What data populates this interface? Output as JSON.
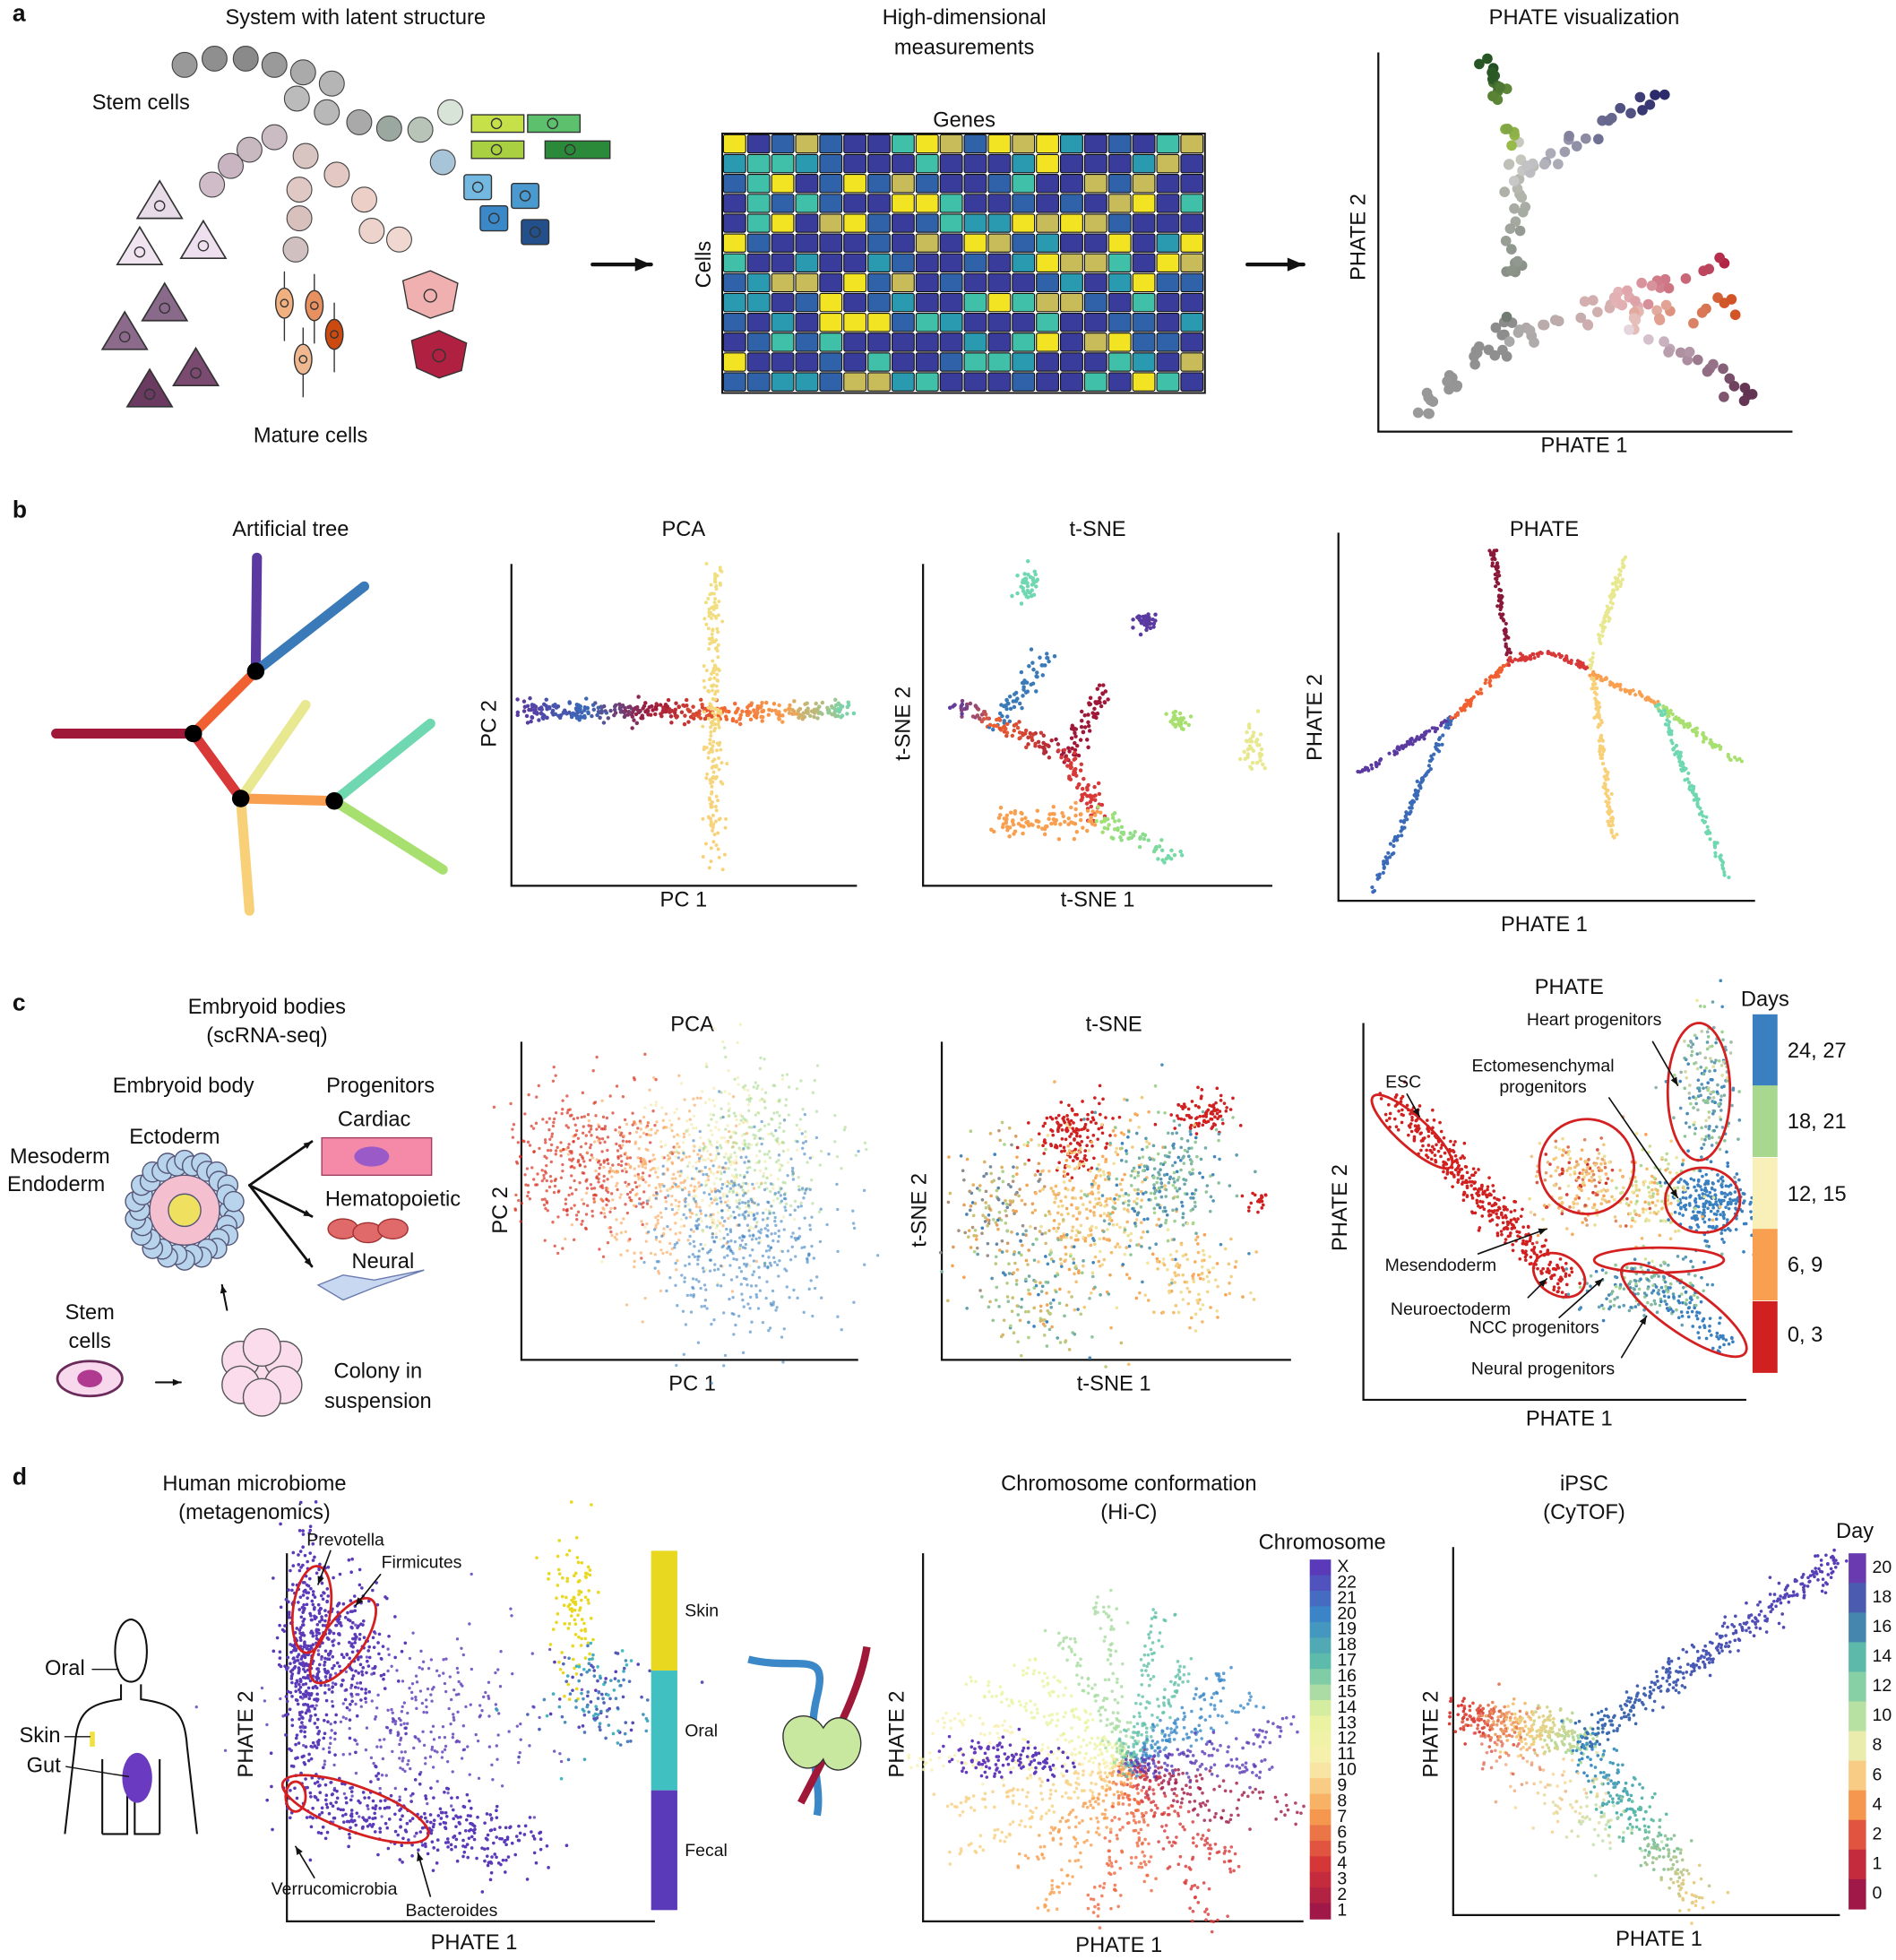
{
  "panel_a": {
    "label": "a",
    "system_title": "System with latent structure",
    "stem_cells": "Stem cells",
    "mature_cells": "Mature cells",
    "measurements_title": [
      "High-dimensional",
      "measurements"
    ],
    "genes": "Genes",
    "cells": "Cells",
    "phate_title": "PHATE visualization",
    "x_label": "PHATE 1",
    "y_label": "PHATE 2"
  },
  "panel_b": {
    "label": "b",
    "tree_title": "Artificial tree",
    "pca": {
      "title": "PCA",
      "x_label": "PC 1",
      "y_label": "PC 2"
    },
    "tsne": {
      "title": "t-SNE",
      "x_label": "t-SNE 1",
      "y_label": "t-SNE 2"
    },
    "phate": {
      "title": "PHATE",
      "x_label": "PHATE 1",
      "y_label": "PHATE 2"
    }
  },
  "panel_c": {
    "label": "c",
    "title": [
      "Embryoid bodies",
      "(scRNA-seq)"
    ],
    "embryoid_body": "Embryoid body",
    "progenitors": "Progenitors",
    "layers": [
      "Ectoderm",
      "Mesoderm",
      "Endoderm"
    ],
    "progenitor_types": [
      "Cardiac",
      "Hematopoietic",
      "Neural"
    ],
    "stem_cells": [
      "Stem",
      "cells"
    ],
    "colony": [
      "Colony in",
      "suspension"
    ],
    "pca": {
      "title": "PCA",
      "x_label": "PC 1",
      "y_label": "PC 2"
    },
    "tsne": {
      "title": "t-SNE",
      "x_label": "t-SNE 1",
      "y_label": "t-SNE 2"
    },
    "phate": {
      "title": "PHATE",
      "x_label": "PHATE 1",
      "y_label": "PHATE 2",
      "colorbar_title": "Days",
      "colorbar_labels": [
        "24, 27",
        "18, 21",
        "12, 15",
        "6, 9",
        "0, 3"
      ],
      "annotations": {
        "esc": "ESC",
        "heart": "Heart progenitors",
        "ectomesenchymal": [
          "Ectomesenchymal",
          "progenitors"
        ],
        "mesendoderm": "Mesendoderm",
        "neuroectoderm": "Neuroectoderm",
        "ncc": "NCC progenitors",
        "neural": "Neural progenitors"
      }
    }
  },
  "panel_d": {
    "label": "d",
    "microbiome": {
      "title": [
        "Human microbiome",
        "(metagenomics)"
      ],
      "body_sites": [
        "Oral",
        "Skin",
        "Gut"
      ],
      "annotations": [
        "Prevotella",
        "Firmicutes",
        "Verrucomicrobia",
        "Bacteroides"
      ],
      "colorbar_labels": [
        "Skin",
        "Oral",
        "Fecal"
      ],
      "x_label": "PHATE 1",
      "y_label": "PHATE 2"
    },
    "hic": {
      "title": [
        "Chromosome conformation",
        "(Hi-C)"
      ],
      "colorbar_title": "Chromosome",
      "colorbar_labels": [
        "X",
        "22",
        "21",
        "20",
        "19",
        "18",
        "17",
        "16",
        "15",
        "14",
        "13",
        "12",
        "11",
        "10",
        "9",
        "8",
        "7",
        "6",
        "5",
        "4",
        "3",
        "2",
        "1"
      ],
      "x_label": "PHATE 1",
      "y_label": "PHATE 2"
    },
    "ipsc": {
      "title": [
        "iPSC",
        "(CyTOF)"
      ],
      "colorbar_title": "Day",
      "colorbar_labels": [
        "20",
        "18",
        "16",
        "14",
        "12",
        "10",
        "8",
        "6",
        "4",
        "2",
        "1",
        "0"
      ],
      "x_label": "PHATE 1",
      "y_label": "PHATE 2"
    }
  }
}
